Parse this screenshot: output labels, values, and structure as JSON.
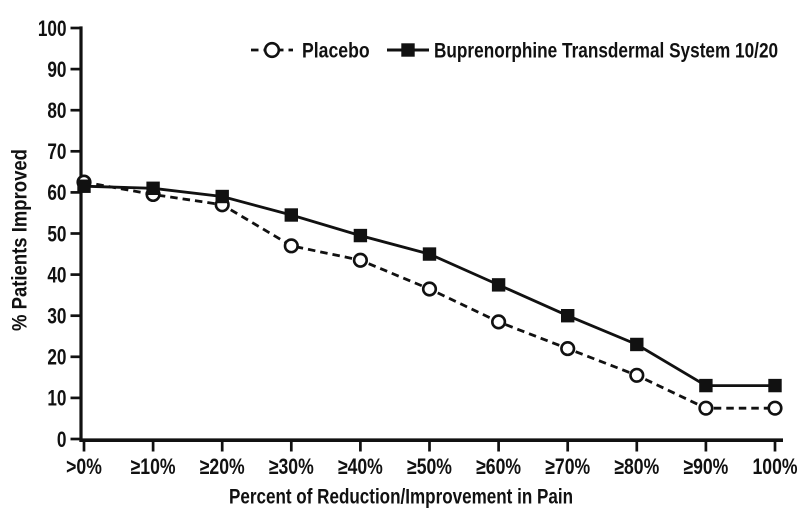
{
  "figure": {
    "background": "#ffffff",
    "ink": "#111111"
  },
  "chart_data": {
    "type": "line",
    "title": "",
    "categories": [
      ">0%",
      "≥10%",
      "≥20%",
      "≥30%",
      "≥40%",
      "≥50%",
      "≥60%",
      "≥70%",
      "≥80%",
      "≥90%",
      "100%"
    ],
    "series": [
      {
        "name": "Placebo",
        "line_style": "dashed",
        "marker": "open-circle",
        "color": "#111111",
        "values": [
          62.5,
          59.5,
          57,
          47,
          43.5,
          36.5,
          28.5,
          22,
          15.5,
          7.5,
          7.5
        ]
      },
      {
        "name": "Buprenorphine Transdermal System 10/20",
        "line_style": "solid",
        "marker": "filled-square",
        "color": "#111111",
        "values": [
          61.5,
          61,
          59,
          54.5,
          49.5,
          45,
          37.5,
          30,
          23,
          13,
          13
        ]
      }
    ],
    "xlabel": "Percent of Reduction/Improvement in Pain",
    "ylabel": "% Patients Improved",
    "ylim": [
      0,
      100
    ],
    "ytick_step": 10,
    "legend_position": "top",
    "grid": false
  }
}
